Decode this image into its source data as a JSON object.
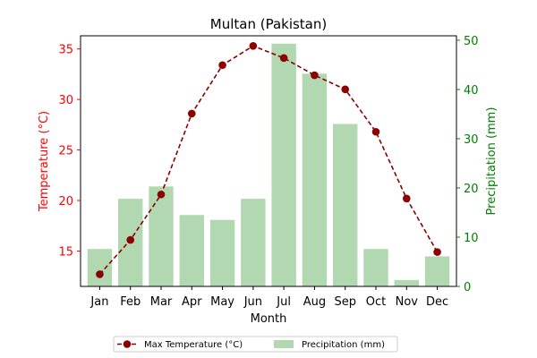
{
  "chart_data": {
    "type": "bar+line",
    "title": "Multan (Pakistan)",
    "categories": [
      "Jan",
      "Feb",
      "Mar",
      "Apr",
      "May",
      "Jun",
      "Jul",
      "Aug",
      "Sep",
      "Oct",
      "Nov",
      "Dec"
    ],
    "xlabel": "Month",
    "ylabel_left": "Temperature (°C)",
    "ylabel_right": "Precipitation (mm)",
    "ylim_left": [
      11.5,
      36.3
    ],
    "ylim_right": [
      0,
      50.9
    ],
    "yticks_left": [
      15,
      20,
      25,
      30,
      35
    ],
    "yticks_right": [
      0,
      10,
      20,
      30,
      40,
      50
    ],
    "series": [
      {
        "name": "Max Temperature (°C)",
        "type": "line",
        "axis": "left",
        "values": [
          12.7,
          16.1,
          20.6,
          28.6,
          33.4,
          35.3,
          34.1,
          32.4,
          31.0,
          26.8,
          20.2,
          14.9
        ]
      },
      {
        "name": "Precipitation (mm)",
        "type": "bar",
        "axis": "right",
        "values": [
          7.6,
          17.8,
          20.3,
          14.5,
          13.5,
          17.8,
          49.3,
          43.2,
          33.0,
          7.6,
          1.3,
          6.1
        ]
      }
    ],
    "colors": {
      "line": "#8B0000",
      "bar": "#b2d8b2",
      "left_axis": "#ff0000",
      "right_axis": "#008000"
    },
    "legend": {
      "placement": "bottom-center",
      "entries": [
        "Max Temperature (°C)",
        "Precipitation (mm)"
      ]
    },
    "grid": false
  }
}
